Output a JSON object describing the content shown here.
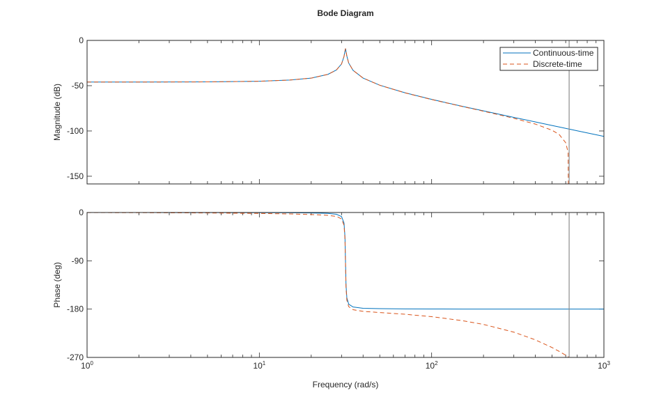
{
  "chart_data": [
    {
      "type": "line",
      "title": "Bode Diagram",
      "ylabel": "Magnitude (dB)",
      "xscale": "log",
      "xlim": [
        1,
        1000
      ],
      "ylim": [
        -158.5,
        0
      ],
      "yticks": [
        0,
        -50,
        -100,
        -150
      ],
      "ytick_labels": [
        "0",
        "-50",
        "-100",
        "-150"
      ],
      "legend": {
        "placement": "top-right",
        "entries": [
          "Continuous-time",
          "Discrete-time"
        ]
      },
      "x": [
        1,
        2,
        5,
        10,
        15,
        20,
        25,
        28,
        30,
        31,
        31.4,
        31.62,
        31.85,
        32.2,
        33,
        35,
        40,
        50,
        70,
        100,
        150,
        200,
        300,
        400,
        500,
        550,
        600,
        620,
        628,
        700,
        800,
        1000
      ],
      "series": [
        {
          "name": "Continuous-time",
          "color": "#0072BD",
          "style": "solid",
          "values": [
            -46.0,
            -46.0,
            -45.8,
            -45.1,
            -43.8,
            -41.6,
            -37.5,
            -32.7,
            -26.0,
            -17.8,
            -11.9,
            -8.9,
            -12.1,
            -17.3,
            -25.0,
            -33.1,
            -41.6,
            -49.5,
            -57.8,
            -65.1,
            -72.7,
            -77.8,
            -85.0,
            -90.0,
            -94.0,
            -95.6,
            -97.1,
            -97.7,
            -97.9,
            -99.8,
            -102.1,
            -106.0
          ]
        },
        {
          "name": "Discrete-time",
          "color": "#D95319",
          "style": "dashed",
          "values": [
            -46.0,
            -46.0,
            -45.8,
            -45.1,
            -43.8,
            -41.6,
            -37.5,
            -32.7,
            -26.0,
            -17.8,
            -11.9,
            -8.9,
            -12.1,
            -17.3,
            -25.0,
            -33.1,
            -41.6,
            -49.5,
            -57.9,
            -65.3,
            -72.9,
            -78.2,
            -86.0,
            -92.4,
            -99.2,
            -103.9,
            -113.0,
            -123.7,
            -300,
            null,
            null,
            null
          ]
        }
      ],
      "vertical_line": {
        "x": 628.3,
        "color": "#8c8c8c"
      }
    },
    {
      "type": "line",
      "xlabel": "Frequency (rad/s)",
      "ylabel": "Phase (deg)",
      "xscale": "log",
      "xlim": [
        1,
        1000
      ],
      "ylim": [
        -270,
        0
      ],
      "xticks": [
        1,
        10,
        100,
        1000
      ],
      "xtick_labels": [
        {
          "base": "10",
          "exp": "0"
        },
        {
          "base": "10",
          "exp": "1"
        },
        {
          "base": "10",
          "exp": "2"
        },
        {
          "base": "10",
          "exp": "3"
        }
      ],
      "yticks": [
        0,
        -90,
        -180,
        -270
      ],
      "ytick_labels": [
        "0",
        "-90",
        "-180",
        "-270"
      ],
      "x": [
        1,
        2,
        5,
        10,
        15,
        20,
        25,
        28,
        30,
        31,
        31.4,
        31.62,
        31.85,
        32.2,
        33,
        35,
        40,
        50,
        70,
        100,
        150,
        200,
        300,
        400,
        500,
        550,
        600,
        620,
        628,
        700,
        800,
        1000
      ],
      "series": [
        {
          "name": "Continuous-time",
          "color": "#0072BD",
          "style": "solid",
          "values": [
            -0.03,
            -0.05,
            -0.13,
            -0.28,
            -0.51,
            -0.85,
            -1.7,
            -3.3,
            -7.6,
            -19.4,
            -44.7,
            -90,
            -135.6,
            -158.8,
            -170.7,
            -176.1,
            -178.5,
            -179.2,
            -179.6,
            -179.8,
            -179.9,
            -179.9,
            -180,
            -180,
            -180,
            -180,
            -180,
            -180,
            -180,
            -180,
            -180,
            -180
          ]
        },
        {
          "name": "Discrete-time",
          "color": "#D95319",
          "style": "dashed",
          "values": [
            -0.17,
            -0.34,
            -0.85,
            -1.71,
            -2.66,
            -3.71,
            -5.28,
            -7.3,
            -11.9,
            -23.8,
            -49.2,
            -94.5,
            -140.2,
            -163.4,
            -175.4,
            -181.1,
            -184.2,
            -186.4,
            -189.6,
            -194.1,
            -201.4,
            -208.5,
            -222.9,
            -237.3,
            -251.6,
            -258.8,
            -265.9,
            -268.8,
            -272,
            null,
            null,
            null
          ]
        }
      ],
      "vertical_line": {
        "x": 628.3,
        "color": "#8c8c8c"
      }
    }
  ]
}
